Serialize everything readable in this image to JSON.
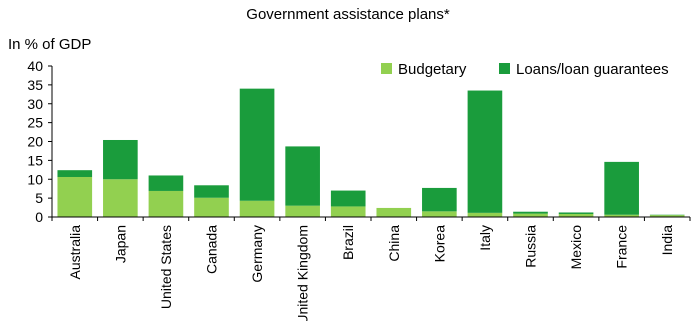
{
  "chart_data": {
    "type": "bar",
    "stacked": true,
    "title": "Government assistance plans*",
    "ylabel": "In % of GDP",
    "ylim": [
      0,
      40
    ],
    "yticks": [
      0,
      5,
      10,
      15,
      20,
      25,
      30,
      35,
      40
    ],
    "grid": false,
    "legend_position": "top-right",
    "categories": [
      "Australia",
      "Japan",
      "United States",
      "Canada",
      "Germany",
      "United Kingdom",
      "Brazil",
      "China",
      "Korea",
      "Italy",
      "Russia",
      "Mexico",
      "France",
      "India"
    ],
    "series": [
      {
        "name": "Budgetary",
        "color": "#92d050",
        "values": [
          10.6,
          10.0,
          6.9,
          5.1,
          4.3,
          3.0,
          2.8,
          2.4,
          1.5,
          1.1,
          0.9,
          0.8,
          0.6,
          0.5
        ]
      },
      {
        "name": "Loans/loan guarantees",
        "color": "#1a9c3c",
        "values": [
          1.8,
          10.4,
          4.1,
          3.3,
          29.7,
          15.7,
          4.2,
          0.0,
          6.2,
          32.4,
          0.5,
          0.4,
          14.0,
          0.1
        ]
      }
    ]
  }
}
